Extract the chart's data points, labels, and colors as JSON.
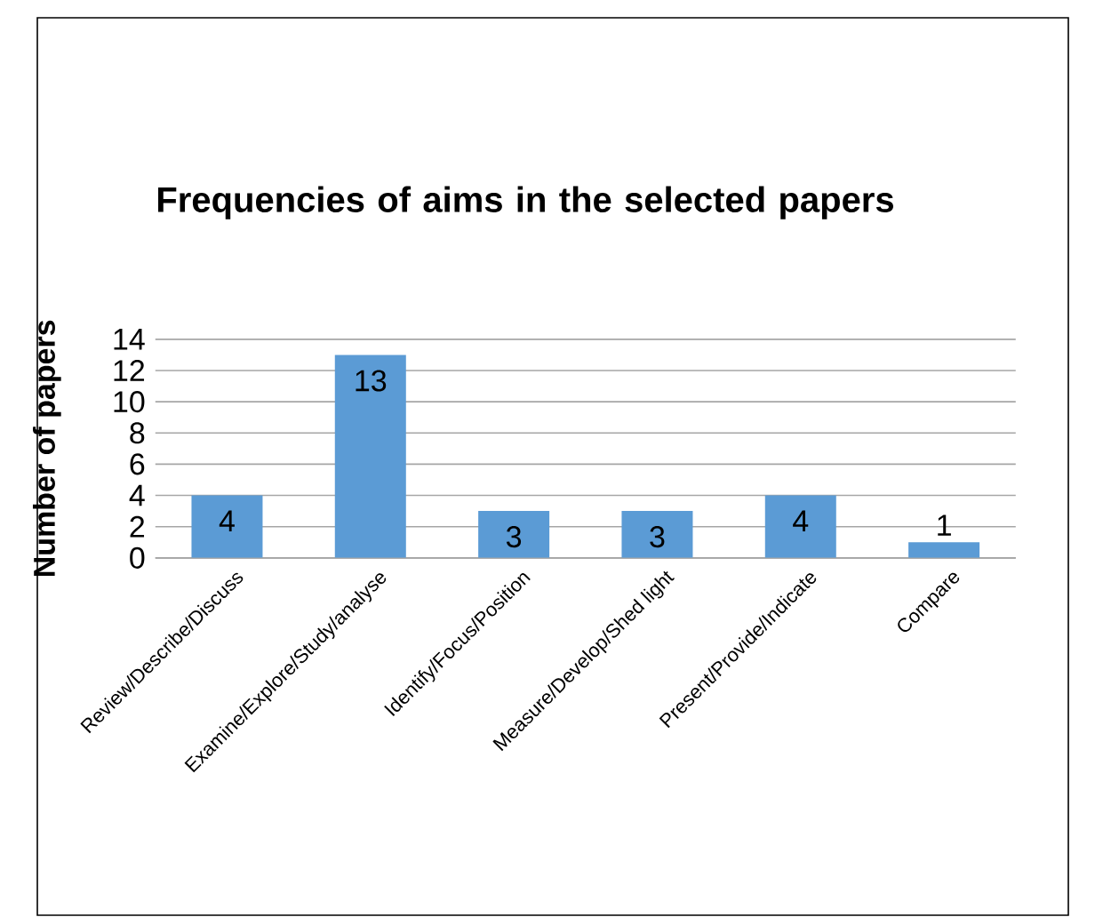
{
  "chart_data": {
    "type": "bar",
    "title": "Frequencies of aims in the selected papers",
    "ylabel": "Number of papers",
    "categories": [
      "Review/Describe/Discuss",
      "Examine/Explore/Study/analyse",
      "Identify/Focus/Position",
      "Measure/Develop/Shed  light",
      "Present/Provide/Indicate",
      "Compare"
    ],
    "values": [
      4,
      13,
      3,
      3,
      4,
      1
    ],
    "color": "#5b9bd5",
    "ylim": [
      0,
      14
    ],
    "yticks": [
      0,
      2,
      4,
      6,
      8,
      10,
      12,
      14
    ],
    "grid": "y",
    "data_labels": true
  }
}
